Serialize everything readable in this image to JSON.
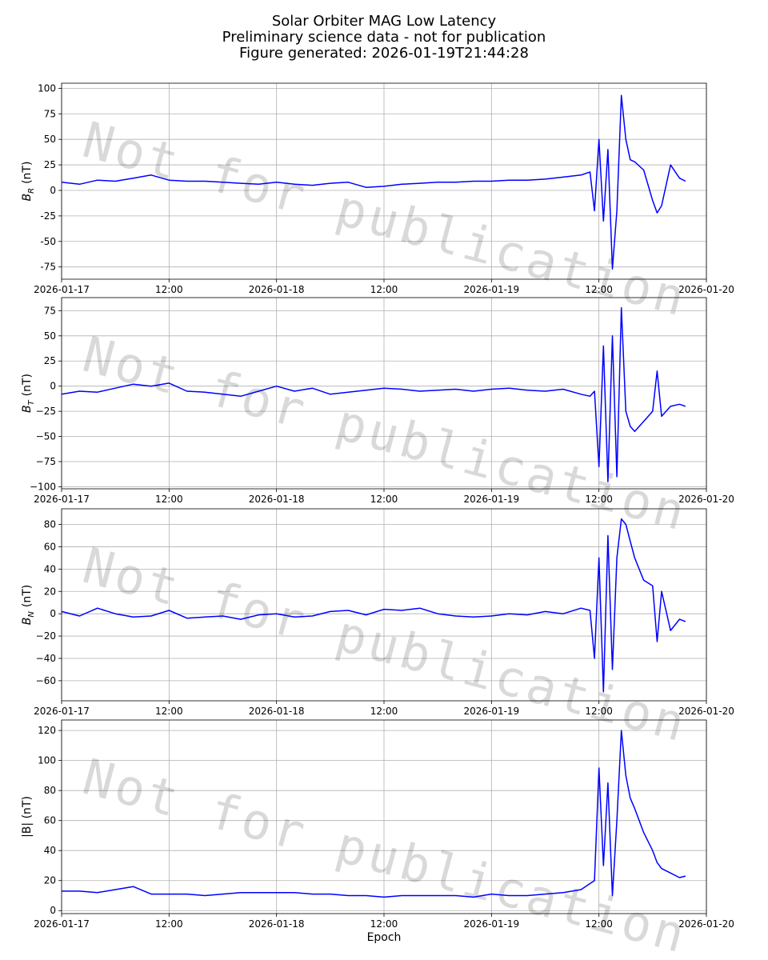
{
  "figure": {
    "title": "Solar Orbiter MAG Low Latency",
    "subtitle": "Preliminary science data - not for publication",
    "generated": "Figure generated: 2026-01-19T21:44:28"
  },
  "chart_data": [
    {
      "type": "line",
      "ylabel": {
        "base": "B",
        "sub": "R",
        "unit": "(nT)"
      },
      "watermark": "Not for publication",
      "grid": true,
      "xlim": [
        "2026-01-17T00:00",
        "2026-01-20T00:00"
      ],
      "xticks": [
        {
          "value": "2026-01-17T00:00",
          "label": "2026-01-17"
        },
        {
          "value": "2026-01-17T12:00",
          "label": "12:00"
        },
        {
          "value": "2026-01-18T00:00",
          "label": "2026-01-18"
        },
        {
          "value": "2026-01-18T12:00",
          "label": "12:00"
        },
        {
          "value": "2026-01-19T00:00",
          "label": "2026-01-19"
        },
        {
          "value": "2026-01-19T12:00",
          "label": "12:00"
        },
        {
          "value": "2026-01-20T00:00",
          "label": "2026-01-20"
        }
      ],
      "ylim": [
        -87,
        105
      ],
      "yticks": [
        -75,
        -50,
        -25,
        0,
        25,
        50,
        75,
        100
      ],
      "x": [
        "2026-01-17T00:00",
        "2026-01-17T02:00",
        "2026-01-17T04:00",
        "2026-01-17T06:00",
        "2026-01-17T08:00",
        "2026-01-17T10:00",
        "2026-01-17T12:00",
        "2026-01-17T14:00",
        "2026-01-17T16:00",
        "2026-01-17T18:00",
        "2026-01-17T20:00",
        "2026-01-17T22:00",
        "2026-01-18T00:00",
        "2026-01-18T02:00",
        "2026-01-18T04:00",
        "2026-01-18T06:00",
        "2026-01-18T08:00",
        "2026-01-18T10:00",
        "2026-01-18T12:00",
        "2026-01-18T14:00",
        "2026-01-18T16:00",
        "2026-01-18T18:00",
        "2026-01-18T20:00",
        "2026-01-18T22:00",
        "2026-01-19T00:00",
        "2026-01-19T02:00",
        "2026-01-19T04:00",
        "2026-01-19T06:00",
        "2026-01-19T08:00",
        "2026-01-19T10:00",
        "2026-01-19T11:00",
        "2026-01-19T11:30",
        "2026-01-19T12:00",
        "2026-01-19T12:30",
        "2026-01-19T13:00",
        "2026-01-19T13:30",
        "2026-01-19T14:00",
        "2026-01-19T14:30",
        "2026-01-19T15:00",
        "2026-01-19T15:30",
        "2026-01-19T16:00",
        "2026-01-19T17:00",
        "2026-01-19T18:00",
        "2026-01-19T18:30",
        "2026-01-19T19:00",
        "2026-01-19T20:00",
        "2026-01-19T21:00",
        "2026-01-19T21:40"
      ],
      "series": [
        {
          "color": "#0000ff",
          "values": [
            8,
            6,
            10,
            9,
            12,
            15,
            10,
            9,
            9,
            8,
            7,
            6,
            8,
            6,
            5,
            7,
            8,
            3,
            4,
            6,
            7,
            8,
            8,
            9,
            9,
            10,
            10,
            11,
            13,
            15,
            18,
            -20,
            50,
            -30,
            40,
            -77,
            -20,
            93,
            50,
            30,
            28,
            20,
            -10,
            -22,
            -15,
            25,
            12,
            9
          ]
        }
      ]
    },
    {
      "type": "line",
      "ylabel": {
        "base": "B",
        "sub": "T",
        "unit": "(nT)"
      },
      "watermark": "Not for publication",
      "grid": true,
      "xlim": [
        "2026-01-17T00:00",
        "2026-01-20T00:00"
      ],
      "xticks": [
        {
          "value": "2026-01-17T00:00",
          "label": "2026-01-17"
        },
        {
          "value": "2026-01-17T12:00",
          "label": "12:00"
        },
        {
          "value": "2026-01-18T00:00",
          "label": "2026-01-18"
        },
        {
          "value": "2026-01-18T12:00",
          "label": "12:00"
        },
        {
          "value": "2026-01-19T00:00",
          "label": "2026-01-19"
        },
        {
          "value": "2026-01-19T12:00",
          "label": "12:00"
        },
        {
          "value": "2026-01-20T00:00",
          "label": "2026-01-20"
        }
      ],
      "ylim": [
        -102,
        88
      ],
      "yticks": [
        {
          "value": -100,
          "label": "−100"
        },
        {
          "value": -75,
          "label": "−75"
        },
        {
          "value": -50,
          "label": "−50"
        },
        {
          "value": -25,
          "label": "−25"
        },
        0,
        25,
        50,
        75
      ],
      "x": [
        "2026-01-17T00:00",
        "2026-01-17T02:00",
        "2026-01-17T04:00",
        "2026-01-17T06:00",
        "2026-01-17T08:00",
        "2026-01-17T10:00",
        "2026-01-17T12:00",
        "2026-01-17T14:00",
        "2026-01-17T16:00",
        "2026-01-17T18:00",
        "2026-01-17T20:00",
        "2026-01-17T22:00",
        "2026-01-18T00:00",
        "2026-01-18T02:00",
        "2026-01-18T04:00",
        "2026-01-18T06:00",
        "2026-01-18T08:00",
        "2026-01-18T10:00",
        "2026-01-18T12:00",
        "2026-01-18T14:00",
        "2026-01-18T16:00",
        "2026-01-18T18:00",
        "2026-01-18T20:00",
        "2026-01-18T22:00",
        "2026-01-19T00:00",
        "2026-01-19T02:00",
        "2026-01-19T04:00",
        "2026-01-19T06:00",
        "2026-01-19T08:00",
        "2026-01-19T10:00",
        "2026-01-19T11:00",
        "2026-01-19T11:30",
        "2026-01-19T12:00",
        "2026-01-19T12:30",
        "2026-01-19T13:00",
        "2026-01-19T13:30",
        "2026-01-19T14:00",
        "2026-01-19T14:30",
        "2026-01-19T15:00",
        "2026-01-19T15:30",
        "2026-01-19T16:00",
        "2026-01-19T17:00",
        "2026-01-19T18:00",
        "2026-01-19T18:30",
        "2026-01-19T19:00",
        "2026-01-19T20:00",
        "2026-01-19T21:00",
        "2026-01-19T21:40"
      ],
      "series": [
        {
          "color": "#0000ff",
          "values": [
            -8,
            -5,
            -6,
            -2,
            2,
            0,
            3,
            -5,
            -6,
            -8,
            -10,
            -5,
            0,
            -5,
            -2,
            -8,
            -6,
            -4,
            -2,
            -3,
            -5,
            -4,
            -3,
            -5,
            -3,
            -2,
            -4,
            -5,
            -3,
            -8,
            -10,
            -5,
            -80,
            40,
            -95,
            50,
            -90,
            78,
            -25,
            -40,
            -45,
            -35,
            -25,
            15,
            -30,
            -20,
            -18,
            -20
          ]
        }
      ]
    },
    {
      "type": "line",
      "ylabel": {
        "base": "B",
        "sub": "N",
        "unit": "(nT)"
      },
      "watermark": "Not for publication",
      "grid": true,
      "xlim": [
        "2026-01-17T00:00",
        "2026-01-20T00:00"
      ],
      "xticks": [
        {
          "value": "2026-01-17T00:00",
          "label": "2026-01-17"
        },
        {
          "value": "2026-01-17T12:00",
          "label": "12:00"
        },
        {
          "value": "2026-01-18T00:00",
          "label": "2026-01-18"
        },
        {
          "value": "2026-01-18T12:00",
          "label": "12:00"
        },
        {
          "value": "2026-01-19T00:00",
          "label": "2026-01-19"
        },
        {
          "value": "2026-01-19T12:00",
          "label": "12:00"
        },
        {
          "value": "2026-01-20T00:00",
          "label": "2026-01-20"
        }
      ],
      "ylim": [
        -78,
        94
      ],
      "yticks": [
        {
          "value": -60,
          "label": "−60"
        },
        {
          "value": -40,
          "label": "−40"
        },
        {
          "value": -20,
          "label": "−20"
        },
        0,
        20,
        40,
        60,
        80
      ],
      "x": [
        "2026-01-17T00:00",
        "2026-01-17T02:00",
        "2026-01-17T04:00",
        "2026-01-17T06:00",
        "2026-01-17T08:00",
        "2026-01-17T10:00",
        "2026-01-17T12:00",
        "2026-01-17T14:00",
        "2026-01-17T16:00",
        "2026-01-17T18:00",
        "2026-01-17T20:00",
        "2026-01-17T22:00",
        "2026-01-18T00:00",
        "2026-01-18T02:00",
        "2026-01-18T04:00",
        "2026-01-18T06:00",
        "2026-01-18T08:00",
        "2026-01-18T10:00",
        "2026-01-18T12:00",
        "2026-01-18T14:00",
        "2026-01-18T16:00",
        "2026-01-18T18:00",
        "2026-01-18T20:00",
        "2026-01-18T22:00",
        "2026-01-19T00:00",
        "2026-01-19T02:00",
        "2026-01-19T04:00",
        "2026-01-19T06:00",
        "2026-01-19T08:00",
        "2026-01-19T10:00",
        "2026-01-19T11:00",
        "2026-01-19T11:30",
        "2026-01-19T12:00",
        "2026-01-19T12:30",
        "2026-01-19T13:00",
        "2026-01-19T13:30",
        "2026-01-19T14:00",
        "2026-01-19T14:30",
        "2026-01-19T15:00",
        "2026-01-19T15:30",
        "2026-01-19T16:00",
        "2026-01-19T17:00",
        "2026-01-19T18:00",
        "2026-01-19T18:30",
        "2026-01-19T19:00",
        "2026-01-19T20:00",
        "2026-01-19T21:00",
        "2026-01-19T21:40"
      ],
      "series": [
        {
          "color": "#0000ff",
          "values": [
            2,
            -2,
            5,
            0,
            -3,
            -2,
            3,
            -4,
            -3,
            -2,
            -5,
            -1,
            0,
            -3,
            -2,
            2,
            3,
            -1,
            4,
            3,
            5,
            0,
            -2,
            -3,
            -2,
            0,
            -1,
            2,
            0,
            5,
            3,
            -40,
            50,
            -70,
            70,
            -50,
            50,
            85,
            80,
            65,
            50,
            30,
            25,
            -25,
            20,
            -15,
            -5,
            -7
          ]
        }
      ]
    },
    {
      "type": "line",
      "ylabel": "|B| (nT)",
      "xlabel": "Epoch",
      "watermark": "Not for publication",
      "grid": true,
      "xlim": [
        "2026-01-17T00:00",
        "2026-01-20T00:00"
      ],
      "xticks": [
        {
          "value": "2026-01-17T00:00",
          "label": "2026-01-17"
        },
        {
          "value": "2026-01-17T12:00",
          "label": "12:00"
        },
        {
          "value": "2026-01-18T00:00",
          "label": "2026-01-18"
        },
        {
          "value": "2026-01-18T12:00",
          "label": "12:00"
        },
        {
          "value": "2026-01-19T00:00",
          "label": "2026-01-19"
        },
        {
          "value": "2026-01-19T12:00",
          "label": "12:00"
        },
        {
          "value": "2026-01-20T00:00",
          "label": "2026-01-20"
        }
      ],
      "ylim": [
        -2,
        127
      ],
      "yticks": [
        0,
        20,
        40,
        60,
        80,
        100,
        120
      ],
      "x": [
        "2026-01-17T00:00",
        "2026-01-17T02:00",
        "2026-01-17T04:00",
        "2026-01-17T06:00",
        "2026-01-17T08:00",
        "2026-01-17T10:00",
        "2026-01-17T12:00",
        "2026-01-17T14:00",
        "2026-01-17T16:00",
        "2026-01-17T18:00",
        "2026-01-17T20:00",
        "2026-01-17T22:00",
        "2026-01-18T00:00",
        "2026-01-18T02:00",
        "2026-01-18T04:00",
        "2026-01-18T06:00",
        "2026-01-18T08:00",
        "2026-01-18T10:00",
        "2026-01-18T12:00",
        "2026-01-18T14:00",
        "2026-01-18T16:00",
        "2026-01-18T18:00",
        "2026-01-18T20:00",
        "2026-01-18T22:00",
        "2026-01-19T00:00",
        "2026-01-19T02:00",
        "2026-01-19T04:00",
        "2026-01-19T06:00",
        "2026-01-19T08:00",
        "2026-01-19T10:00",
        "2026-01-19T11:00",
        "2026-01-19T11:30",
        "2026-01-19T12:00",
        "2026-01-19T12:30",
        "2026-01-19T13:00",
        "2026-01-19T13:30",
        "2026-01-19T14:00",
        "2026-01-19T14:30",
        "2026-01-19T15:00",
        "2026-01-19T15:30",
        "2026-01-19T16:00",
        "2026-01-19T17:00",
        "2026-01-19T18:00",
        "2026-01-19T18:30",
        "2026-01-19T19:00",
        "2026-01-19T20:00",
        "2026-01-19T21:00",
        "2026-01-19T21:40"
      ],
      "series": [
        {
          "color": "#0000ff",
          "values": [
            13,
            13,
            12,
            14,
            16,
            11,
            11,
            11,
            10,
            11,
            12,
            12,
            12,
            12,
            11,
            11,
            10,
            10,
            9,
            10,
            10,
            10,
            10,
            9,
            11,
            10,
            10,
            11,
            12,
            14,
            18,
            20,
            95,
            30,
            85,
            10,
            60,
            120,
            90,
            75,
            68,
            52,
            40,
            32,
            28,
            25,
            22,
            23
          ]
        }
      ]
    }
  ]
}
